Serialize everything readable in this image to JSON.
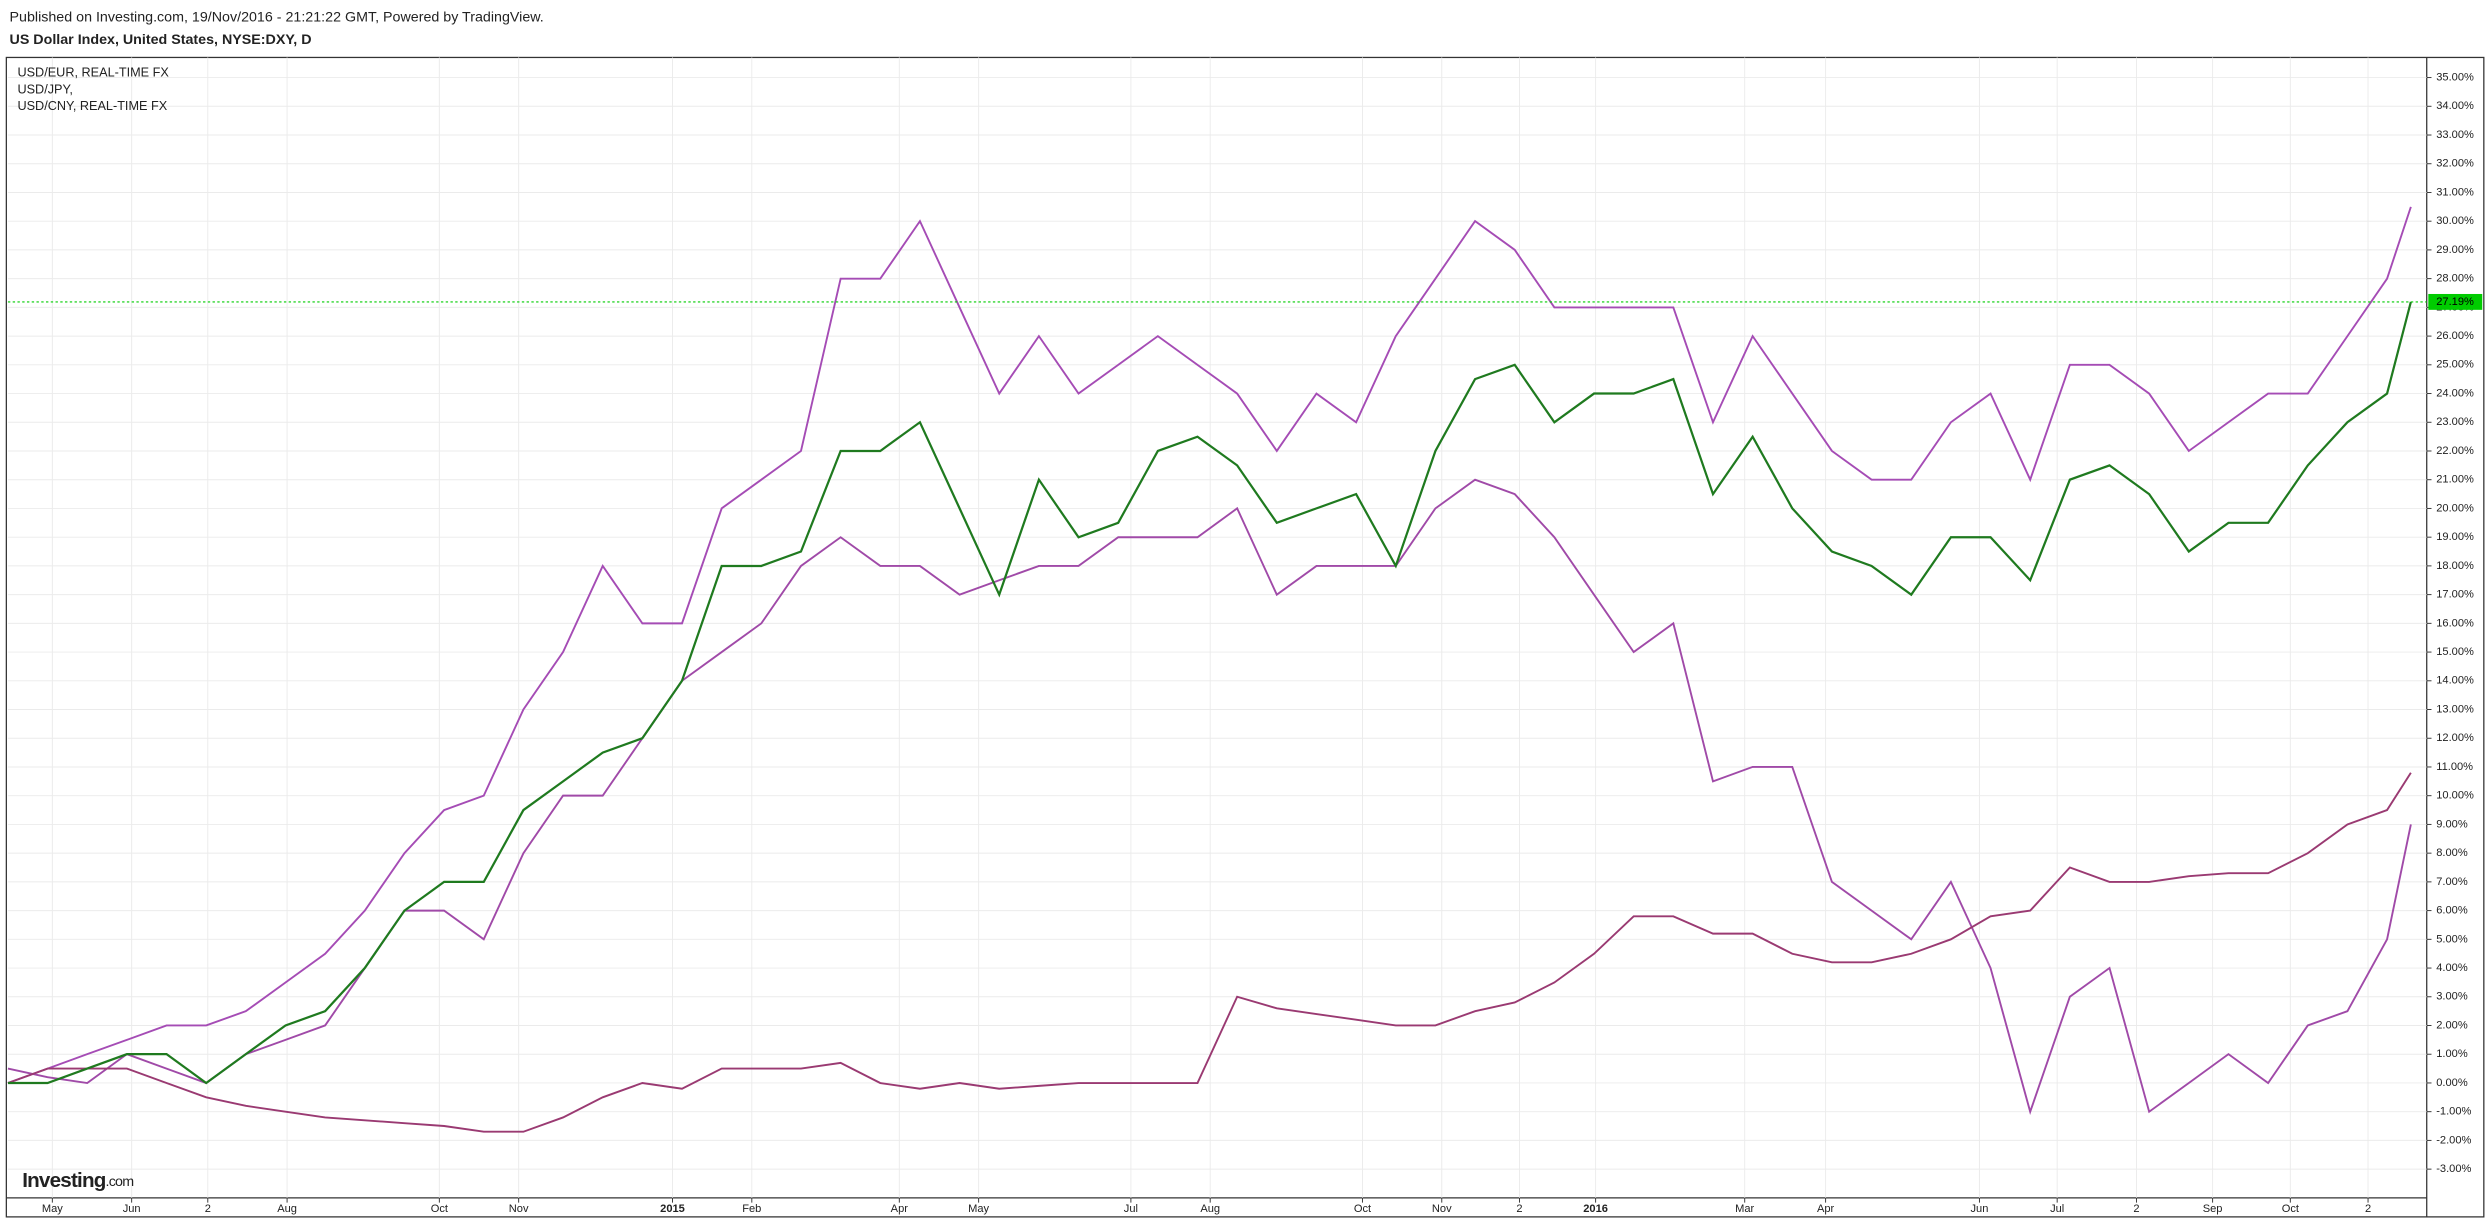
{
  "header": {
    "published": "Published on Investing.com, 19/Nov/2016 - 21:21:22 GMT, Powered by TradingView.",
    "title": "US Dollar Index, United States, NYSE:DXY, D"
  },
  "watermark": {
    "brand": "Investing",
    "suffix": ".com"
  },
  "chart_data": {
    "type": "line",
    "x": [
      5,
      30,
      55,
      80,
      105,
      130,
      155,
      180,
      205,
      230,
      255,
      280,
      305,
      330,
      355,
      380,
      405,
      430,
      455,
      480,
      505,
      530,
      555,
      580,
      605,
      630,
      655,
      680,
      705,
      730,
      755,
      780,
      805,
      830,
      855,
      880,
      905,
      930,
      955,
      980,
      1005,
      1030,
      1055,
      1080,
      1105,
      1130,
      1155,
      1180,
      1205,
      1230,
      1255,
      1280,
      1305,
      1330,
      1355,
      1380,
      1405,
      1430,
      1455,
      1480,
      1505,
      1520
    ],
    "xlim": [
      5,
      1530
    ],
    "xticks": [
      {
        "value": 33,
        "label": "May"
      },
      {
        "value": 83,
        "label": "Jun"
      },
      {
        "value": 131,
        "label": "2"
      },
      {
        "value": 181,
        "label": "Aug"
      },
      {
        "value": 277,
        "label": "Oct"
      },
      {
        "value": 327,
        "label": "Nov"
      },
      {
        "value": 424,
        "label": "2015"
      },
      {
        "value": 474,
        "label": "Feb"
      },
      {
        "value": 567,
        "label": "Apr"
      },
      {
        "value": 617,
        "label": "May"
      },
      {
        "value": 713,
        "label": "Jul"
      },
      {
        "value": 763,
        "label": "Aug"
      },
      {
        "value": 859,
        "label": "Oct"
      },
      {
        "value": 909,
        "label": "Nov"
      },
      {
        "value": 958,
        "label": "2"
      },
      {
        "value": 1006,
        "label": "2016"
      },
      {
        "value": 1100,
        "label": "Mar"
      },
      {
        "value": 1151,
        "label": "Apr"
      },
      {
        "value": 1248,
        "label": "Jun"
      },
      {
        "value": 1297,
        "label": "Jul"
      },
      {
        "value": 1347,
        "label": "2"
      },
      {
        "value": 1395,
        "label": "Sep"
      },
      {
        "value": 1444,
        "label": "Oct"
      },
      {
        "value": 1493,
        "label": "2"
      }
    ],
    "ylim": [
      -4,
      35.7
    ],
    "yticks": [
      {
        "value": -3,
        "label": "-3.00%"
      },
      {
        "value": -2,
        "label": "-2.00%"
      },
      {
        "value": -1,
        "label": "-1.00%"
      },
      {
        "value": 0,
        "label": "0.00%"
      },
      {
        "value": 1,
        "label": "1.00%"
      },
      {
        "value": 2,
        "label": "2.00%"
      },
      {
        "value": 3,
        "label": "3.00%"
      },
      {
        "value": 4,
        "label": "4.00%"
      },
      {
        "value": 5,
        "label": "5.00%"
      },
      {
        "value": 6,
        "label": "6.00%"
      },
      {
        "value": 7,
        "label": "7.00%"
      },
      {
        "value": 8,
        "label": "8.00%"
      },
      {
        "value": 9,
        "label": "9.00%"
      },
      {
        "value": 10,
        "label": "10.00%"
      },
      {
        "value": 11,
        "label": "11.00%"
      },
      {
        "value": 12,
        "label": "12.00%"
      },
      {
        "value": 13,
        "label": "13.00%"
      },
      {
        "value": 14,
        "label": "14.00%"
      },
      {
        "value": 15,
        "label": "15.00%"
      },
      {
        "value": 16,
        "label": "16.00%"
      },
      {
        "value": 17,
        "label": "17.00%"
      },
      {
        "value": 18,
        "label": "18.00%"
      },
      {
        "value": 19,
        "label": "19.00%"
      },
      {
        "value": 20,
        "label": "20.00%"
      },
      {
        "value": 21,
        "label": "21.00%"
      },
      {
        "value": 22,
        "label": "22.00%"
      },
      {
        "value": 23,
        "label": "23.00%"
      },
      {
        "value": 24,
        "label": "24.00%"
      },
      {
        "value": 25,
        "label": "25.00%"
      },
      {
        "value": 26,
        "label": "26.00%"
      },
      {
        "value": 27,
        "label": "27.00%"
      },
      {
        "value": 28,
        "label": "28.00%"
      },
      {
        "value": 29,
        "label": "29.00%"
      },
      {
        "value": 30,
        "label": "30.00%"
      },
      {
        "value": 31,
        "label": "31.00%"
      },
      {
        "value": 32,
        "label": "32.00%"
      },
      {
        "value": 33,
        "label": "33.00%"
      },
      {
        "value": 34,
        "label": "34.00%"
      },
      {
        "value": 35,
        "label": "35.00%"
      }
    ],
    "grid": true,
    "last_value": {
      "value": 27.19,
      "label": "27.19%",
      "color": "#00cc00"
    },
    "series": [
      {
        "name": "USD/EUR, REAL-TIME FX",
        "color": "#a54cb5",
        "values": [
          0,
          0.5,
          1,
          1.5,
          2,
          2,
          2.5,
          3.5,
          4.5,
          6,
          8,
          9.5,
          10,
          13,
          15,
          18,
          16,
          16,
          20,
          21,
          22,
          28,
          28,
          30,
          27,
          24,
          26,
          24,
          25,
          26,
          25,
          24,
          22,
          24,
          23,
          26,
          28,
          30,
          29,
          27,
          27,
          27,
          27,
          23,
          26,
          24,
          22,
          21,
          21,
          23,
          24,
          21,
          25,
          25,
          24,
          22,
          23,
          24,
          24,
          26,
          28,
          30.5
        ]
      },
      {
        "name": "USD/JPY,",
        "color": "#a04aa8",
        "values": [
          0.5,
          0.2,
          0,
          1,
          0.5,
          0,
          1,
          1.5,
          2,
          4,
          6,
          6,
          5,
          8,
          10,
          10,
          12,
          14,
          15,
          16,
          18,
          19,
          18,
          18,
          17,
          17.5,
          18,
          18,
          19,
          19,
          19,
          20,
          17,
          18,
          18,
          18,
          20,
          21,
          20.5,
          19,
          17,
          15,
          16,
          10.5,
          11,
          11,
          7,
          6,
          5,
          7,
          4,
          -1,
          3,
          4,
          -1,
          0,
          1,
          0,
          2,
          2.5,
          5,
          9
        ]
      },
      {
        "name": "USD/CNY, REAL-TIME FX",
        "color": "#9a3a72",
        "values": [
          0,
          0.5,
          0.5,
          0.5,
          0,
          -0.5,
          -0.8,
          -1,
          -1.2,
          -1.3,
          -1.4,
          -1.5,
          -1.7,
          -1.7,
          -1.2,
          -0.5,
          0,
          -0.2,
          0.5,
          0.5,
          0.5,
          0.7,
          0,
          -0.2,
          0,
          -0.2,
          -0.1,
          0,
          0,
          0,
          0,
          3,
          2.6,
          2.4,
          2.2,
          2,
          2,
          2.5,
          2.8,
          3.5,
          4.5,
          5.8,
          5.8,
          5.2,
          5.2,
          4.5,
          4.2,
          4.2,
          4.5,
          5,
          5.8,
          6,
          7.5,
          7,
          7,
          7.2,
          7.3,
          7.3,
          8,
          9,
          9.5,
          10.8
        ]
      },
      {
        "color": "#1f7a1f",
        "values": [
          0,
          0,
          0.5,
          1,
          1,
          0,
          1,
          2,
          2.5,
          4,
          6,
          7,
          7,
          9.5,
          10.5,
          11.5,
          12,
          14,
          18,
          18,
          18.5,
          22,
          22,
          23,
          20,
          17,
          21,
          19,
          19.5,
          22,
          22.5,
          21.5,
          19.5,
          20,
          20.5,
          18,
          22,
          24.5,
          25,
          23,
          24,
          24,
          24.5,
          20.5,
          22.5,
          20,
          18.5,
          18,
          17,
          19,
          19,
          17.5,
          21,
          21.5,
          20.5,
          18.5,
          19.5,
          19.5,
          21.5,
          23,
          24,
          27.19
        ]
      }
    ]
  }
}
